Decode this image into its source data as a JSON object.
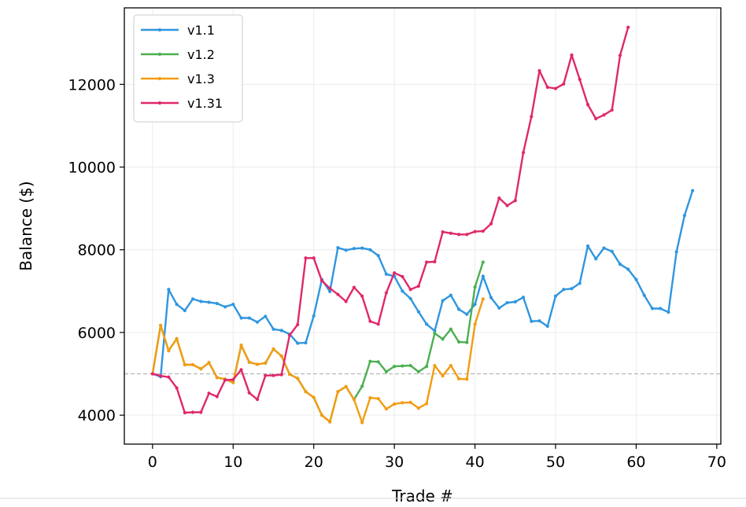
{
  "chart_data": {
    "type": "line",
    "title": "",
    "xlabel": "Trade #",
    "ylabel": "Balance ($)",
    "xlim": [
      -3.5,
      70.5
    ],
    "ylim": [
      3300,
      13850
    ],
    "xticks": [
      0,
      10,
      20,
      30,
      40,
      50,
      60,
      70
    ],
    "yticks": [
      4000,
      6000,
      8000,
      10000,
      12000
    ],
    "grid": true,
    "legend_position": "top-left",
    "reference_line": {
      "y": 5000,
      "style": "dashed",
      "color": "#bbbbbb"
    },
    "series": [
      {
        "name": "v1.1",
        "color": "#2f96e0",
        "x": [
          0,
          1,
          2,
          3,
          4,
          5,
          6,
          7,
          8,
          9,
          10,
          11,
          12,
          13,
          14,
          15,
          16,
          17,
          18,
          19,
          20,
          21,
          22,
          23,
          24,
          25,
          26,
          27,
          28,
          29,
          30,
          31,
          32,
          33,
          34,
          35,
          36,
          37,
          38,
          39,
          40,
          41,
          42,
          43,
          44,
          45,
          46,
          47,
          48,
          49,
          50,
          51,
          52,
          53,
          54,
          55,
          56,
          57,
          58,
          59,
          60,
          61,
          62,
          63,
          64,
          65,
          66,
          67
        ],
        "values": [
          5000,
          4930,
          7040,
          6680,
          6530,
          6810,
          6750,
          6730,
          6700,
          6620,
          6680,
          6350,
          6350,
          6250,
          6390,
          6080,
          6050,
          5960,
          5740,
          5750,
          6400,
          7280,
          6990,
          8050,
          7990,
          8030,
          8040,
          8000,
          7860,
          7410,
          7360,
          7000,
          6820,
          6500,
          6200,
          6040,
          6770,
          6900,
          6560,
          6440,
          6680,
          7360,
          6840,
          6590,
          6720,
          6740,
          6850,
          6270,
          6280,
          6150,
          6880,
          7040,
          7060,
          7190,
          8090,
          7780,
          8040,
          7960,
          7650,
          7530,
          7280,
          6900,
          6580,
          6580,
          6490,
          7950,
          8830,
          9430
        ]
      },
      {
        "name": "v1.2",
        "color": "#4caf50",
        "x": [
          0,
          1,
          2,
          3,
          4,
          5,
          6,
          7,
          8,
          9,
          10,
          11,
          12,
          13,
          14,
          15,
          16,
          17,
          18,
          19,
          20,
          21,
          22,
          23,
          24,
          25,
          26,
          27,
          28,
          29,
          30,
          31,
          32,
          33,
          34,
          35,
          36,
          37,
          38,
          39,
          40,
          41
        ],
        "values": [
          5000,
          6170,
          5560,
          5850,
          5220,
          5220,
          5120,
          5270,
          4910,
          4870,
          4790,
          5690,
          5280,
          5230,
          5260,
          5600,
          5430,
          4990,
          4890,
          4570,
          4430,
          4000,
          3840,
          4570,
          4690,
          4380,
          4700,
          5300,
          5290,
          5050,
          5180,
          5190,
          5200,
          5050,
          5180,
          5980,
          5840,
          6080,
          5770,
          5760,
          7100,
          7700
        ]
      },
      {
        "name": "v1.3",
        "color": "#f39c12",
        "x": [
          0,
          1,
          2,
          3,
          4,
          5,
          6,
          7,
          8,
          9,
          10,
          11,
          12,
          13,
          14,
          15,
          16,
          17,
          18,
          19,
          20,
          21,
          22,
          23,
          24,
          25,
          26,
          27,
          28,
          29,
          30,
          31,
          32,
          33,
          34,
          35,
          36,
          37,
          38,
          39,
          40,
          41
        ],
        "values": [
          5000,
          6170,
          5560,
          5850,
          5220,
          5220,
          5120,
          5270,
          4910,
          4870,
          4790,
          5690,
          5280,
          5230,
          5260,
          5600,
          5430,
          4990,
          4890,
          4570,
          4430,
          4000,
          3840,
          4570,
          4690,
          4380,
          3820,
          4420,
          4400,
          4150,
          4270,
          4300,
          4310,
          4170,
          4280,
          5200,
          4950,
          5200,
          4880,
          4870,
          6200,
          6810
        ]
      },
      {
        "name": "v1.31",
        "color": "#e0286b",
        "x": [
          0,
          1,
          2,
          3,
          4,
          5,
          6,
          7,
          8,
          9,
          10,
          11,
          12,
          13,
          14,
          15,
          16,
          17,
          18,
          19,
          20,
          21,
          22,
          23,
          24,
          25,
          26,
          27,
          28,
          29,
          30,
          31,
          32,
          33,
          34,
          35,
          36,
          37,
          38,
          39,
          40,
          41,
          42,
          43,
          44,
          45,
          46,
          47,
          48,
          49,
          50,
          51,
          52,
          53,
          54,
          55,
          56,
          57,
          58,
          59
        ],
        "values": [
          5000,
          4950,
          4920,
          4660,
          4060,
          4070,
          4070,
          4530,
          4450,
          4850,
          4860,
          5100,
          4540,
          4380,
          4960,
          4960,
          4980,
          5930,
          6190,
          7800,
          7800,
          7250,
          7070,
          6920,
          6750,
          7090,
          6880,
          6270,
          6200,
          6960,
          7440,
          7350,
          7040,
          7120,
          7700,
          7710,
          8430,
          8400,
          8370,
          8370,
          8440,
          8450,
          8630,
          9250,
          9070,
          9190,
          10350,
          11220,
          12330,
          11930,
          11900,
          12010,
          12710,
          12120,
          11510,
          11170,
          11260,
          11380,
          12700,
          13380
        ]
      }
    ]
  }
}
